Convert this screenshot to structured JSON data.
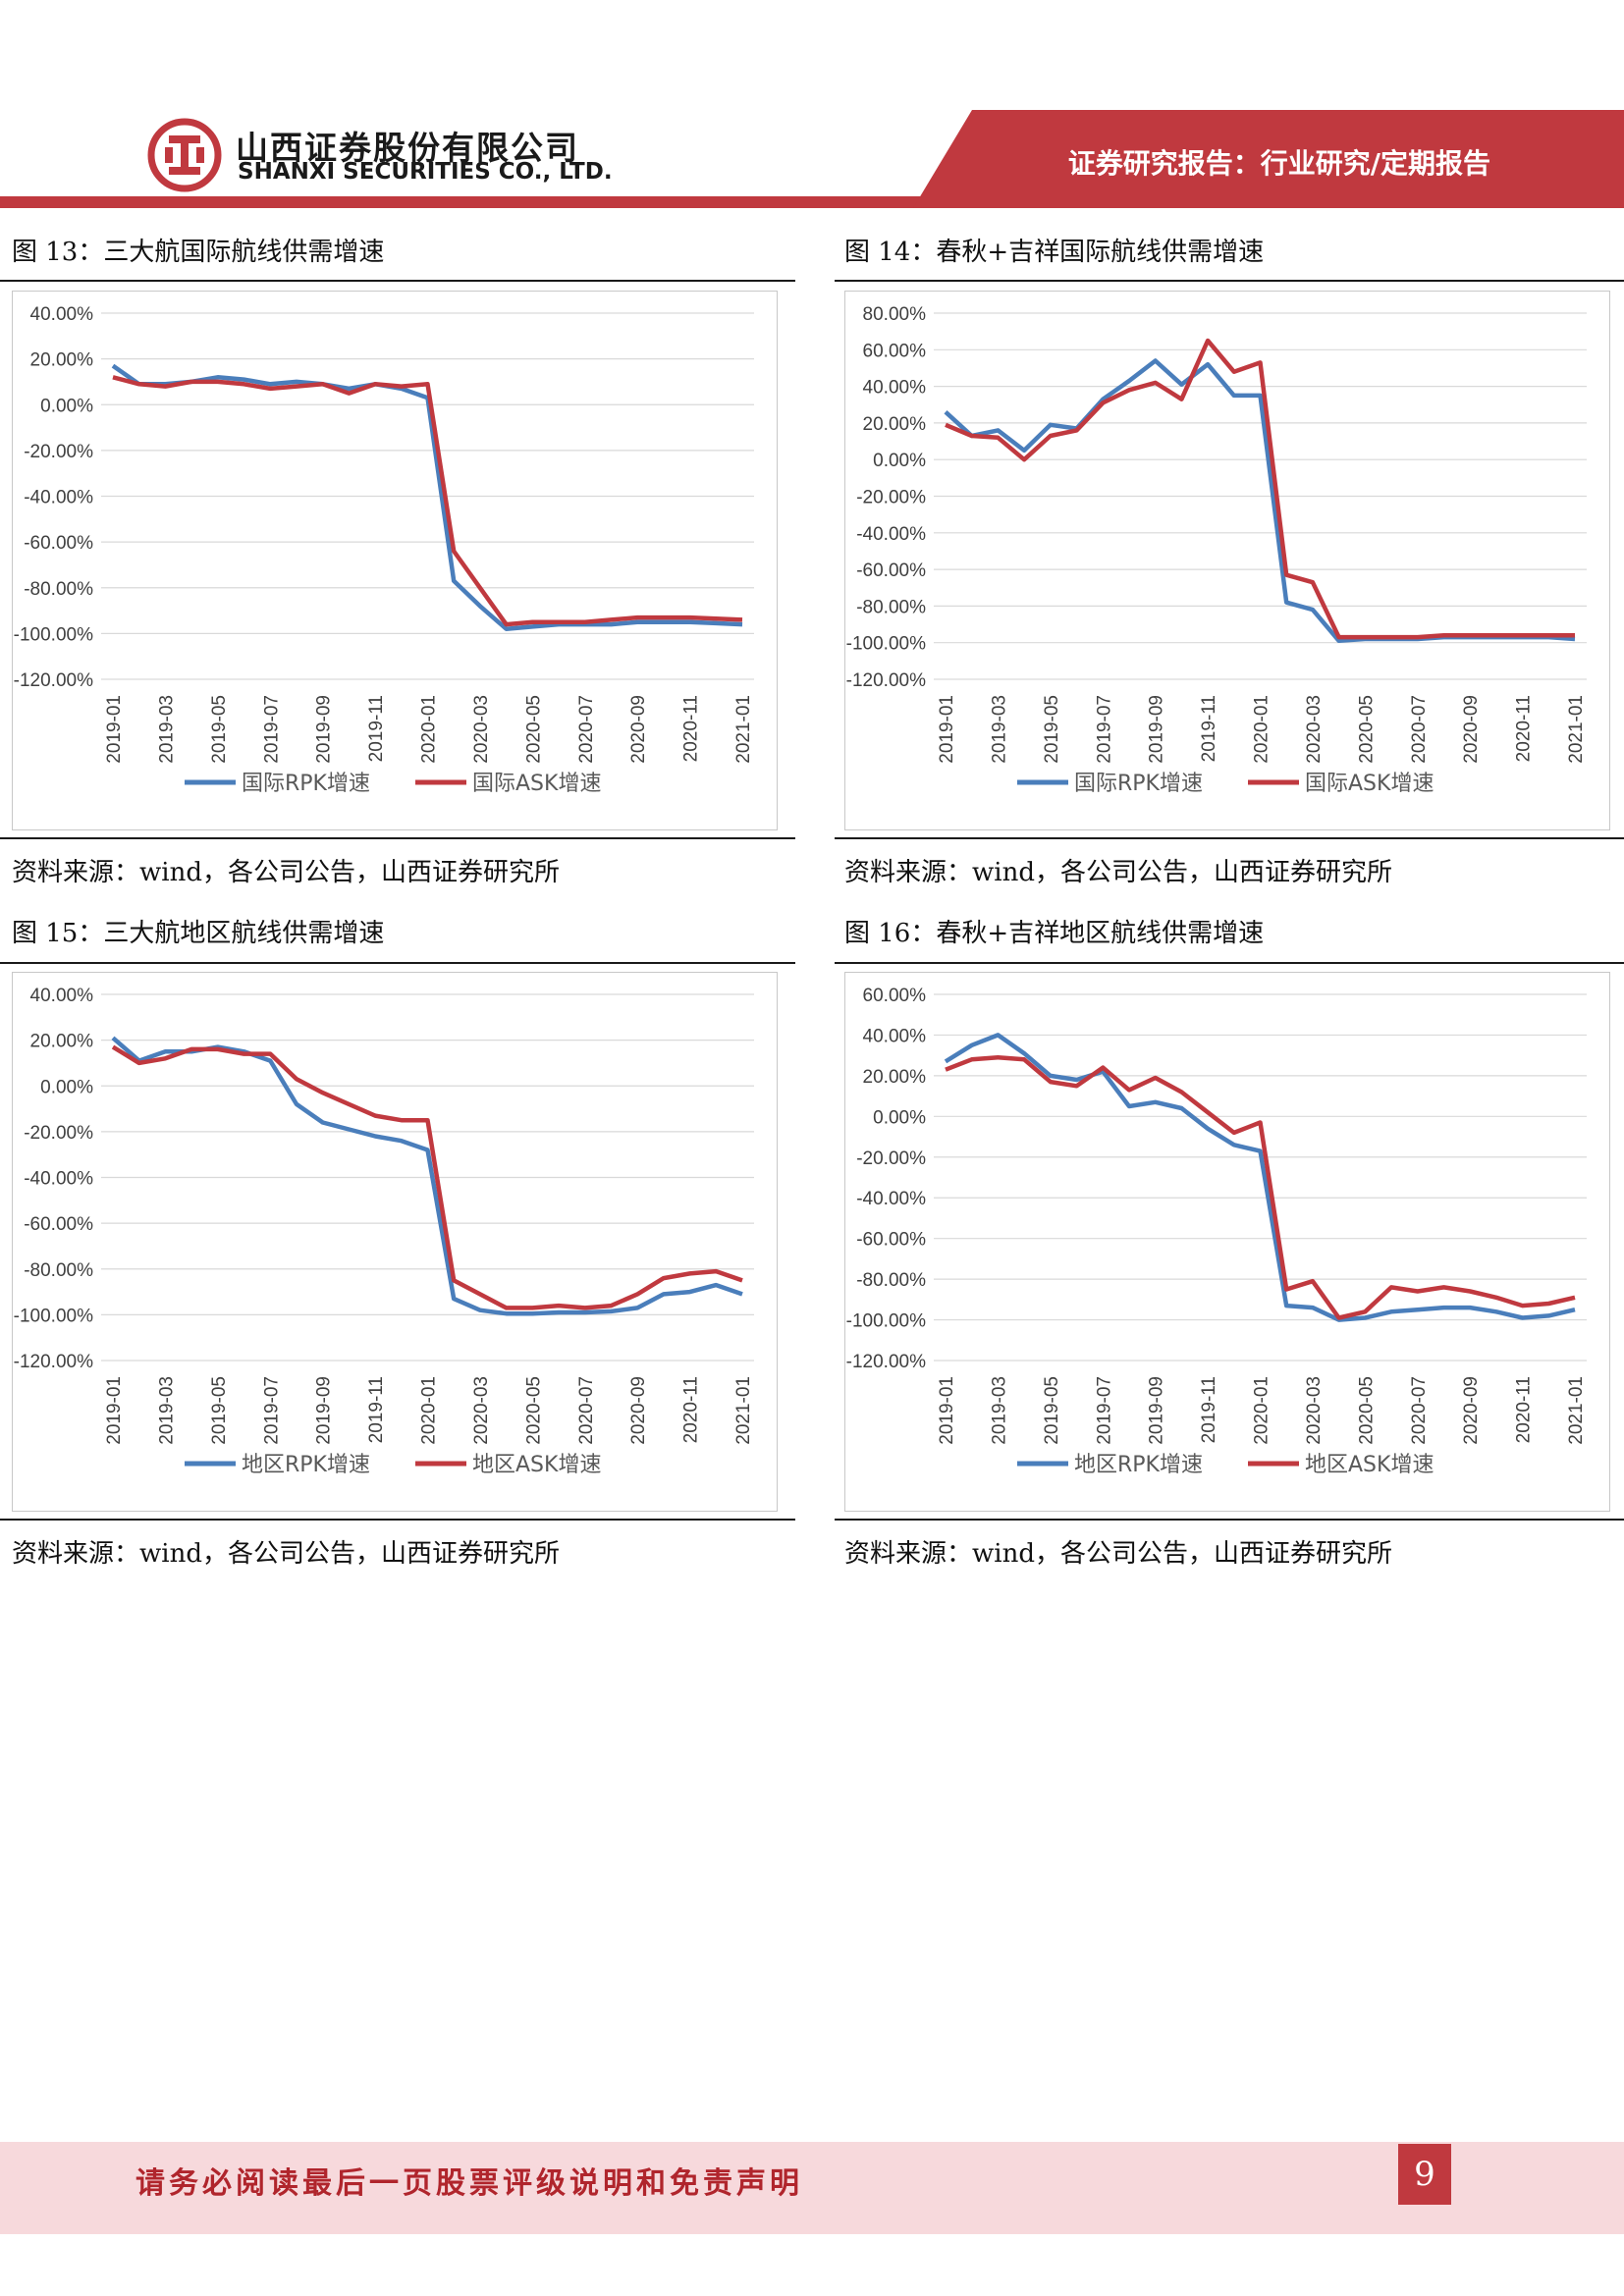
{
  "header": {
    "company_cn": "山西证券股份有限公司",
    "company_en": "SHANXI SECURITIES CO., LTD.",
    "report_type": "证券研究报告：行业研究/定期报告"
  },
  "colors": {
    "brand": "#c0393f",
    "rpk": "#4a7ebb",
    "ask": "#c0393f"
  },
  "figures": [
    {
      "title": "图 13：三大航国际航线供需增速",
      "source": "资料来源：wind，各公司公告，山西证券研究所"
    },
    {
      "title": "图 14：春秋+吉祥国际航线供需增速",
      "source": "资料来源：wind，各公司公告，山西证券研究所"
    },
    {
      "title": "图 15：三大航地区航线供需增速",
      "source": "资料来源：wind，各公司公告，山西证券研究所"
    },
    {
      "title": "图 16：春秋+吉祥地区航线供需增速",
      "source": "资料来源：wind，各公司公告，山西证券研究所"
    }
  ],
  "chart_data": [
    {
      "type": "line",
      "title": "图 13：三大航国际航线供需增速",
      "x": [
        "2019-01",
        "2019-02",
        "2019-03",
        "2019-04",
        "2019-05",
        "2019-06",
        "2019-07",
        "2019-08",
        "2019-09",
        "2019-10",
        "2019-11",
        "2019-12",
        "2020-01",
        "2020-02",
        "2020-03",
        "2020-04",
        "2020-05",
        "2020-06",
        "2020-07",
        "2020-08",
        "2020-09",
        "2020-10",
        "2020-11",
        "2020-12",
        "2021-01"
      ],
      "x_tick_labels": [
        "2019-01",
        "2019-03",
        "2019-05",
        "2019-07",
        "2019-09",
        "2019-11",
        "2020-01",
        "2020-03",
        "2020-05",
        "2020-07",
        "2020-09",
        "2020-11",
        "2021-01"
      ],
      "y_ticks": [
        40,
        20,
        0,
        -20,
        -40,
        -60,
        -80,
        -100,
        -120
      ],
      "y_tick_labels": [
        "40.00%",
        "20.00%",
        "0.00%",
        "-20.00%",
        "-40.00%",
        "-60.00%",
        "-80.00%",
        "-100.00%",
        "-120.00%"
      ],
      "ylim": [
        -120,
        40
      ],
      "series": [
        {
          "name": "国际RPK增速",
          "color": "#4a7ebb",
          "values": [
            17,
            9,
            9,
            10,
            12,
            11,
            9,
            10,
            9,
            7,
            9,
            7,
            3,
            -77,
            -88,
            -98,
            -97,
            -96,
            -96,
            -96,
            -95,
            -95,
            -95,
            -95.5,
            -96
          ]
        },
        {
          "name": "国际ASK增速",
          "color": "#c0393f",
          "values": [
            12,
            9,
            8,
            10,
            10,
            9,
            7,
            8,
            9,
            5,
            9,
            8,
            9,
            -64,
            -80,
            -96,
            -95,
            -95,
            -95,
            -94,
            -93,
            -93,
            -93,
            -93.5,
            -94
          ]
        }
      ],
      "legend": "bottom"
    },
    {
      "type": "line",
      "title": "图 14：春秋+吉祥国际航线供需增速",
      "x": [
        "2019-01",
        "2019-02",
        "2019-03",
        "2019-04",
        "2019-05",
        "2019-06",
        "2019-07",
        "2019-08",
        "2019-09",
        "2019-10",
        "2019-11",
        "2019-12",
        "2020-01",
        "2020-02",
        "2020-03",
        "2020-04",
        "2020-05",
        "2020-06",
        "2020-07",
        "2020-08",
        "2020-09",
        "2020-10",
        "2020-11",
        "2020-12",
        "2021-01"
      ],
      "x_tick_labels": [
        "2019-01",
        "2019-03",
        "2019-05",
        "2019-07",
        "2019-09",
        "2019-11",
        "2020-01",
        "2020-03",
        "2020-05",
        "2020-07",
        "2020-09",
        "2020-11",
        "2021-01"
      ],
      "y_ticks": [
        80,
        60,
        40,
        20,
        0,
        -20,
        -40,
        -60,
        -80,
        -100,
        -120
      ],
      "y_tick_labels": [
        "80.00%",
        "60.00%",
        "40.00%",
        "20.00%",
        "0.00%",
        "-20.00%",
        "-40.00%",
        "-60.00%",
        "-80.00%",
        "-100.00%",
        "-120.00%"
      ],
      "ylim": [
        -120,
        80
      ],
      "series": [
        {
          "name": "国际RPK增速",
          "color": "#4a7ebb",
          "values": [
            26,
            13,
            16,
            5,
            19,
            17,
            33,
            43,
            54,
            41,
            52,
            35,
            35,
            -78,
            -82,
            -99,
            -98,
            -98,
            -98,
            -97,
            -97,
            -97,
            -97,
            -97,
            -98
          ]
        },
        {
          "name": "国际ASK增速",
          "color": "#c0393f",
          "values": [
            19,
            13,
            12,
            0,
            13,
            16,
            31,
            38,
            42,
            33,
            65,
            48,
            53,
            -63,
            -67,
            -97,
            -97,
            -97,
            -97,
            -96,
            -96,
            -96,
            -96,
            -96,
            -96
          ]
        }
      ],
      "legend": "bottom"
    },
    {
      "type": "line",
      "title": "图 15：三大航地区航线供需增速",
      "x": [
        "2019-01",
        "2019-02",
        "2019-03",
        "2019-04",
        "2019-05",
        "2019-06",
        "2019-07",
        "2019-08",
        "2019-09",
        "2019-10",
        "2019-11",
        "2019-12",
        "2020-01",
        "2020-02",
        "2020-03",
        "2020-04",
        "2020-05",
        "2020-06",
        "2020-07",
        "2020-08",
        "2020-09",
        "2020-10",
        "2020-11",
        "2020-12",
        "2021-01"
      ],
      "x_tick_labels": [
        "2019-01",
        "2019-03",
        "2019-05",
        "2019-07",
        "2019-09",
        "2019-11",
        "2020-01",
        "2020-03",
        "2020-05",
        "2020-07",
        "2020-09",
        "2020-11",
        "2021-01"
      ],
      "y_ticks": [
        40,
        20,
        0,
        -20,
        -40,
        -60,
        -80,
        -100,
        -120
      ],
      "y_tick_labels": [
        "40.00%",
        "20.00%",
        "0.00%",
        "-20.00%",
        "-40.00%",
        "-60.00%",
        "-80.00%",
        "-100.00%",
        "-120.00%"
      ],
      "ylim": [
        -120,
        40
      ],
      "series": [
        {
          "name": "地区RPK增速",
          "color": "#4a7ebb",
          "values": [
            21,
            11,
            15,
            15,
            17,
            15,
            11,
            -8,
            -16,
            -19,
            -22,
            -24,
            -28,
            -93,
            -98,
            -99.5,
            -99.5,
            -99,
            -99,
            -98.5,
            -97,
            -91,
            -90,
            -87,
            -91
          ]
        },
        {
          "name": "地区ASK增速",
          "color": "#c0393f",
          "values": [
            17,
            10,
            12,
            16,
            16,
            14,
            14,
            3,
            -3,
            -8,
            -13,
            -15,
            -15,
            -85,
            -91,
            -97,
            -97,
            -96,
            -97,
            -96,
            -91,
            -84,
            -82,
            -81,
            -85
          ]
        }
      ],
      "legend": "bottom"
    },
    {
      "type": "line",
      "title": "图 16：春秋+吉祥地区航线供需增速",
      "x": [
        "2019-01",
        "2019-02",
        "2019-03",
        "2019-04",
        "2019-05",
        "2019-06",
        "2019-07",
        "2019-08",
        "2019-09",
        "2019-10",
        "2019-11",
        "2019-12",
        "2020-01",
        "2020-02",
        "2020-03",
        "2020-04",
        "2020-05",
        "2020-06",
        "2020-07",
        "2020-08",
        "2020-09",
        "2020-10",
        "2020-11",
        "2020-12",
        "2021-01"
      ],
      "x_tick_labels": [
        "2019-01",
        "2019-03",
        "2019-05",
        "2019-07",
        "2019-09",
        "2019-11",
        "2020-01",
        "2020-03",
        "2020-05",
        "2020-07",
        "2020-09",
        "2020-11",
        "2021-01"
      ],
      "y_ticks": [
        60,
        40,
        20,
        0,
        -20,
        -40,
        -60,
        -80,
        -100,
        -120
      ],
      "y_tick_labels": [
        "60.00%",
        "40.00%",
        "20.00%",
        "0.00%",
        "-20.00%",
        "-40.00%",
        "-60.00%",
        "-80.00%",
        "-100.00%",
        "-120.00%"
      ],
      "ylim": [
        -120,
        60
      ],
      "series": [
        {
          "name": "地区RPK增速",
          "color": "#4a7ebb",
          "values": [
            27,
            35,
            40,
            31,
            20,
            18,
            22,
            5,
            7,
            4,
            -6,
            -14,
            -17,
            -93,
            -94,
            -100,
            -99,
            -96,
            -95,
            -94,
            -94,
            -96,
            -99,
            -98,
            -95
          ]
        },
        {
          "name": "地区ASK增速",
          "color": "#c0393f",
          "values": [
            23,
            28,
            29,
            28,
            17,
            15,
            24,
            13,
            19,
            12,
            2,
            -8,
            -3,
            -85,
            -81,
            -99,
            -96,
            -84,
            -86,
            -84,
            -86,
            -89,
            -93,
            -92,
            -89
          ]
        }
      ],
      "legend": "bottom"
    }
  ],
  "footer": {
    "disclaimer": "请务必阅读最后一页股票评级说明和免责声明",
    "page_number": "9"
  }
}
